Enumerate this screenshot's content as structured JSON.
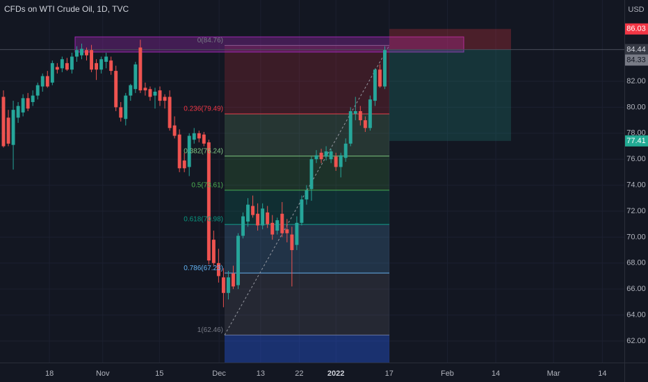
{
  "chart_data": {
    "type": "candlestick",
    "title": "CFDs on WTI Crude Oil, 1D, TVC",
    "currency": "USD",
    "up_color": "#26a69a",
    "down_color": "#ef5350",
    "grid": true,
    "xlim": [
      -0.71,
      127.0
    ],
    "ylim": [
      60.34,
      88.26
    ],
    "xticks": [
      {
        "value": 9.4,
        "label": "18"
      },
      {
        "value": 20.3,
        "label": "Nov"
      },
      {
        "value": 31.9,
        "label": "15"
      },
      {
        "value": 44.1,
        "label": "Dec"
      },
      {
        "value": 52.6,
        "label": "13"
      },
      {
        "value": 60.5,
        "label": "22"
      },
      {
        "value": 68.0,
        "label": "2022"
      },
      {
        "value": 78.9,
        "label": "17"
      },
      {
        "value": 90.8,
        "label": "Feb"
      },
      {
        "value": 100.7,
        "label": "14"
      },
      {
        "value": 112.5,
        "label": "Mar"
      },
      {
        "value": 122.5,
        "label": "14"
      }
    ],
    "yticks": [
      {
        "value": 62,
        "label": "62.00"
      },
      {
        "value": 64,
        "label": "64.00"
      },
      {
        "value": 66,
        "label": "66.00"
      },
      {
        "value": 68,
        "label": "68.00"
      },
      {
        "value": 70,
        "label": "70.00"
      },
      {
        "value": 72,
        "label": "72.00"
      },
      {
        "value": 74,
        "label": "74.00"
      },
      {
        "value": 76,
        "label": "76.00"
      },
      {
        "value": 78,
        "label": "78.00"
      },
      {
        "value": 80,
        "label": "80.00"
      },
      {
        "value": 82,
        "label": "82.00"
      }
    ],
    "ohlc": [
      [
        80.8,
        81.3,
        76.9,
        77.0
      ],
      [
        79.2,
        79.8,
        77.0,
        77.2
      ],
      [
        77.1,
        80.5,
        75.2,
        79.8
      ],
      [
        79.2,
        80.4,
        78.8,
        80.1
      ],
      [
        79.6,
        81.0,
        79.3,
        80.7
      ],
      [
        80.7,
        81.1,
        79.7,
        79.9
      ],
      [
        80.4,
        81.3,
        80.1,
        80.9
      ],
      [
        80.9,
        81.9,
        80.6,
        81.7
      ],
      [
        81.6,
        82.6,
        81.2,
        82.4
      ],
      [
        82.4,
        82.8,
        81.5,
        81.6
      ],
      [
        81.9,
        83.6,
        81.7,
        83.4
      ],
      [
        83.1,
        83.4,
        82.6,
        82.9
      ],
      [
        83.0,
        83.9,
        82.7,
        83.7
      ],
      [
        83.4,
        83.8,
        82.8,
        82.9
      ],
      [
        82.9,
        84.2,
        82.6,
        83.9
      ],
      [
        83.9,
        84.7,
        83.5,
        84.4
      ],
      [
        84.0,
        84.9,
        83.7,
        84.5
      ],
      [
        84.4,
        84.6,
        83.6,
        84.0
      ],
      [
        84.4,
        84.8,
        82.7,
        82.9
      ],
      [
        83.4,
        83.7,
        82.1,
        82.9
      ],
      [
        82.9,
        83.9,
        82.6,
        83.7
      ],
      [
        83.5,
        84.2,
        83.0,
        83.9
      ],
      [
        83.6,
        83.9,
        82.5,
        82.8
      ],
      [
        82.8,
        83.2,
        79.7,
        80.0
      ],
      [
        80.0,
        80.4,
        78.9,
        79.2
      ],
      [
        79.1,
        81.1,
        78.6,
        80.9
      ],
      [
        80.9,
        81.8,
        80.5,
        81.7
      ],
      [
        81.4,
        83.5,
        81.1,
        83.3
      ],
      [
        84.6,
        85.2,
        81.1,
        81.3
      ],
      [
        81.5,
        81.9,
        80.9,
        81.3
      ],
      [
        81.4,
        81.6,
        80.5,
        80.8
      ],
      [
        80.9,
        81.5,
        79.9,
        81.2
      ],
      [
        81.3,
        81.6,
        80.1,
        80.5
      ],
      [
        80.8,
        81.0,
        79.9,
        80.5
      ],
      [
        80.8,
        81.3,
        78.2,
        78.4
      ],
      [
        78.6,
        79.3,
        77.6,
        77.8
      ],
      [
        77.9,
        78.3,
        75.0,
        75.3
      ],
      [
        75.9,
        76.5,
        75.0,
        75.3
      ],
      [
        75.4,
        78.0,
        74.7,
        77.8
      ],
      [
        77.5,
        78.4,
        77.2,
        78.0
      ],
      [
        78.0,
        78.2,
        77.3,
        77.6
      ],
      [
        77.9,
        78.1,
        77.0,
        77.2
      ],
      [
        77.3,
        77.5,
        67.9,
        68.2
      ],
      [
        69.8,
        70.5,
        67.8,
        68.0
      ],
      [
        68.0,
        69.1,
        66.5,
        67.0
      ],
      [
        66.9,
        67.6,
        64.6,
        65.7
      ],
      [
        65.7,
        67.4,
        65.2,
        66.9
      ],
      [
        67.2,
        67.8,
        66.0,
        66.2
      ],
      [
        66.3,
        70.3,
        66.0,
        70.1
      ],
      [
        70.1,
        71.9,
        69.9,
        71.6
      ],
      [
        71.2,
        73.0,
        70.8,
        72.5
      ],
      [
        72.4,
        73.2,
        71.5,
        71.7
      ],
      [
        71.8,
        72.6,
        70.5,
        70.9
      ],
      [
        70.9,
        72.6,
        70.6,
        72.2
      ],
      [
        71.9,
        72.4,
        70.7,
        71.0
      ],
      [
        71.1,
        71.7,
        69.8,
        70.2
      ],
      [
        70.5,
        71.5,
        70.2,
        71.3
      ],
      [
        71.8,
        72.7,
        70.0,
        70.3
      ],
      [
        70.6,
        71.4,
        69.6,
        70.3
      ],
      [
        70.2,
        70.8,
        66.2,
        69.0
      ],
      [
        69.4,
        71.6,
        69.0,
        71.1
      ],
      [
        71.1,
        73.2,
        70.9,
        72.9
      ],
      [
        72.9,
        74.0,
        72.5,
        73.6
      ],
      [
        73.7,
        76.2,
        72.8,
        76.0
      ],
      [
        76.0,
        76.7,
        75.7,
        76.3
      ],
      [
        76.5,
        76.8,
        75.7,
        76.0
      ],
      [
        76.2,
        77.0,
        75.9,
        76.6
      ],
      [
        76.0,
        76.8,
        75.7,
        76.6
      ],
      [
        76.2,
        76.5,
        75.1,
        75.4
      ],
      [
        75.4,
        76.5,
        74.6,
        76.3
      ],
      [
        76.1,
        77.6,
        75.8,
        77.2
      ],
      [
        77.2,
        80.0,
        77.0,
        79.7
      ],
      [
        79.5,
        80.8,
        79.0,
        79.7
      ],
      [
        79.7,
        80.1,
        78.6,
        79.0
      ],
      [
        79.0,
        79.3,
        78.1,
        78.4
      ],
      [
        78.4,
        80.9,
        78.2,
        80.6
      ],
      [
        80.5,
        83.0,
        80.1,
        82.9
      ],
      [
        82.9,
        83.3,
        81.5,
        81.6
      ],
      [
        81.6,
        84.7,
        81.4,
        84.4
      ]
    ],
    "fib": {
      "below_color": "#2962ff",
      "levels": [
        {
          "value": 84.76,
          "label": "0(84.76)",
          "color": "#787b86"
        },
        {
          "value": 79.49,
          "label": "0.236(79.49)",
          "color": "#f23645"
        },
        {
          "value": 76.24,
          "label": "0.382(76.24)",
          "color": "#81c784"
        },
        {
          "value": 73.61,
          "label": "0.5(73.61)",
          "color": "#4caf50"
        },
        {
          "value": 70.98,
          "label": "0.618(70.98)",
          "color": "#089981"
        },
        {
          "value": 67.23,
          "label": "0.786(67.23)",
          "color": "#64b5f6"
        },
        {
          "value": 62.46,
          "label": "1(62.46)",
          "color": "#787b86"
        }
      ]
    },
    "highlight_zone": {
      "low": 84.25,
      "high": 85.42,
      "color": "#9c27b0"
    },
    "position": {
      "stop": 86.03,
      "entry": 84.44,
      "target": 77.41,
      "stop_color": "#f23645",
      "target_color": "#22ab94"
    },
    "last_price": 84.33,
    "last_price_color": "#787b86"
  }
}
